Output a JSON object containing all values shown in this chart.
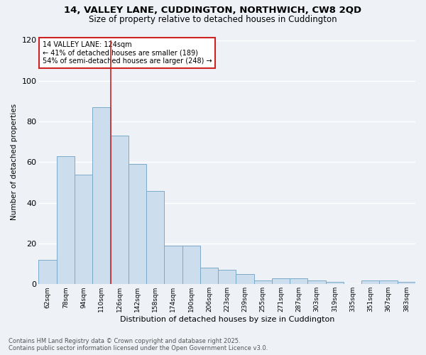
{
  "title_line1": "14, VALLEY LANE, CUDDINGTON, NORTHWICH, CW8 2QD",
  "title_line2": "Size of property relative to detached houses in Cuddington",
  "xlabel": "Distribution of detached houses by size in Cuddington",
  "ylabel": "Number of detached properties",
  "footer_line1": "Contains HM Land Registry data © Crown copyright and database right 2025.",
  "footer_line2": "Contains public sector information licensed under the Open Government Licence v3.0.",
  "annotation_title": "14 VALLEY LANE: 124sqm",
  "annotation_line1": "← 41% of detached houses are smaller (189)",
  "annotation_line2": "54% of semi-detached houses are larger (248) →",
  "bar_labels": [
    "62sqm",
    "78sqm",
    "94sqm",
    "110sqm",
    "126sqm",
    "142sqm",
    "158sqm",
    "174sqm",
    "190sqm",
    "206sqm",
    "223sqm",
    "239sqm",
    "255sqm",
    "271sqm",
    "287sqm",
    "303sqm",
    "319sqm",
    "335sqm",
    "351sqm",
    "367sqm",
    "383sqm"
  ],
  "bar_values": [
    12,
    63,
    54,
    87,
    73,
    59,
    46,
    19,
    19,
    8,
    7,
    5,
    2,
    3,
    3,
    2,
    1,
    0,
    2,
    2,
    1
  ],
  "bar_color": "#ccdded",
  "bar_edge_color": "#7aaac8",
  "vline_color": "#cc2222",
  "background_color": "#eef2f7",
  "grid_color": "#ffffff",
  "ylim": [
    0,
    120
  ],
  "yticks": [
    0,
    20,
    40,
    60,
    80,
    100,
    120
  ]
}
